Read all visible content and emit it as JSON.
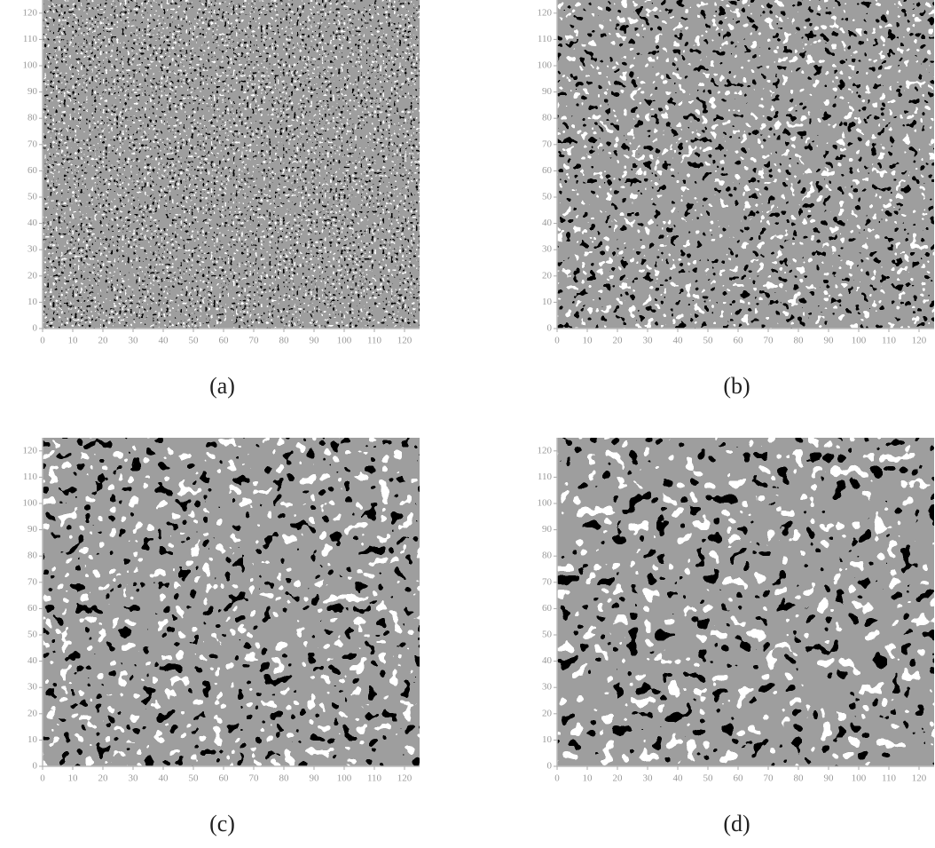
{
  "chart_data": [
    {
      "type": "heatmap",
      "caption": "(a)",
      "xlim": [
        0,
        125
      ],
      "ylim": [
        0,
        125
      ],
      "xticks": [
        0,
        10,
        20,
        30,
        40,
        50,
        60,
        70,
        80,
        90,
        100,
        110,
        120
      ],
      "yticks": [
        0,
        10,
        20,
        30,
        40,
        50,
        60,
        70,
        80,
        90,
        100,
        110,
        120
      ]
    },
    {
      "type": "heatmap",
      "caption": "(b)",
      "xlim": [
        0,
        125
      ],
      "ylim": [
        0,
        125
      ],
      "xticks": [
        0,
        10,
        20,
        30,
        40,
        50,
        60,
        70,
        80,
        90,
        100,
        110,
        120
      ],
      "yticks": [
        0,
        10,
        20,
        30,
        40,
        50,
        60,
        70,
        80,
        90,
        100,
        110,
        120
      ]
    },
    {
      "type": "heatmap",
      "caption": "(c)",
      "xlim": [
        0,
        125
      ],
      "ylim": [
        0,
        125
      ],
      "xticks": [
        0,
        10,
        20,
        30,
        40,
        50,
        60,
        70,
        80,
        90,
        100,
        110,
        120
      ],
      "yticks": [
        0,
        10,
        20,
        30,
        40,
        50,
        60,
        70,
        80,
        90,
        100,
        110,
        120
      ]
    },
    {
      "type": "heatmap",
      "caption": "(d)",
      "xlim": [
        0,
        125
      ],
      "ylim": [
        0,
        125
      ],
      "xticks": [
        0,
        10,
        20,
        30,
        40,
        50,
        60,
        70,
        80,
        90,
        100,
        110,
        120
      ],
      "yticks": [
        0,
        10,
        20,
        30,
        40,
        50,
        60,
        70,
        80,
        90,
        100,
        110,
        120
      ]
    }
  ]
}
